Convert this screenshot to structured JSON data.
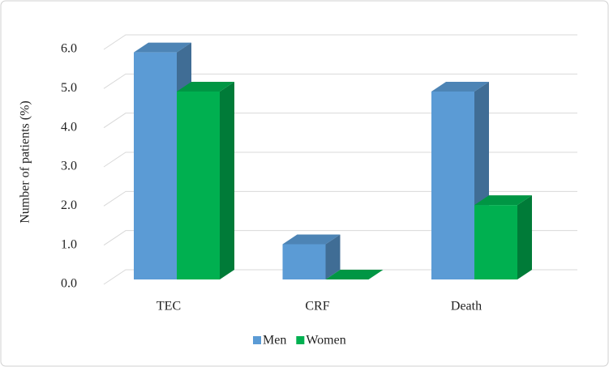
{
  "chart_data": {
    "type": "bar3d",
    "y_label": "Number of patients (%)",
    "categories": [
      "TEC",
      "CRF",
      "Death"
    ],
    "series": [
      {
        "name": "Men",
        "color": "#5b9bd5",
        "values": [
          5.8,
          0.9,
          4.8
        ]
      },
      {
        "name": "Women",
        "color": "#00b050",
        "values": [
          4.8,
          0.0,
          1.9
        ]
      }
    ],
    "ylim": [
      0,
      6
    ],
    "yticks": [
      {
        "value": 0,
        "label": "0.0"
      },
      {
        "value": 1,
        "label": "1.0"
      },
      {
        "value": 2,
        "label": "2.0"
      },
      {
        "value": 3,
        "label": "3.0"
      },
      {
        "value": 4,
        "label": "4.0"
      },
      {
        "value": 5,
        "label": "5.0"
      },
      {
        "value": 6,
        "label": "6.0"
      }
    ],
    "grid": true,
    "legend": "bottom"
  }
}
